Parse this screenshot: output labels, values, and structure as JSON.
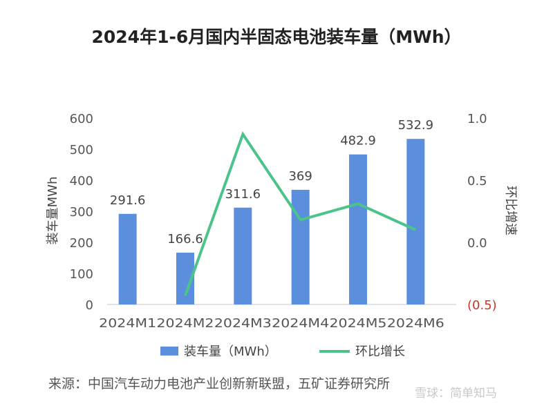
{
  "chart_data": {
    "type": "bar+line",
    "title": "2024年1-6月国内半固态电池装车量（MWh）",
    "categories": [
      "2024M1",
      "2024M2",
      "2024M3",
      "2024M4",
      "2024M5",
      "2024M6"
    ],
    "series": [
      {
        "name": "装车量（MWh）",
        "type": "bar",
        "axis": "left",
        "color": "#5b8fde",
        "values": [
          291.6,
          166.6,
          311.6,
          369,
          482.9,
          532.9
        ],
        "labels": [
          "291.6",
          "166.6",
          "311.6",
          "369",
          "482.9",
          "532.9"
        ]
      },
      {
        "name": "环比增长",
        "type": "line",
        "axis": "right",
        "color": "#4cc38a",
        "values": [
          null,
          -0.43,
          0.87,
          0.18,
          0.31,
          0.1
        ]
      }
    ],
    "ylabel": "装车量MWh",
    "y2label": "环比增速",
    "ylim": [
      0,
      600
    ],
    "yticks": [
      "0",
      "100",
      "200",
      "300",
      "400",
      "500",
      "600"
    ],
    "y2lim": [
      -0.5,
      1.0
    ],
    "y2ticks": [
      "(0.5)",
      "0.0",
      "0.5",
      "1.0"
    ],
    "y2_negative_color": "#c0392b",
    "grid": false,
    "legend_placement": "bottom"
  },
  "source": "来源：中国汽车动力电池产业创新新联盟，五矿证券研究所",
  "watermark": "雪球：简单知马"
}
